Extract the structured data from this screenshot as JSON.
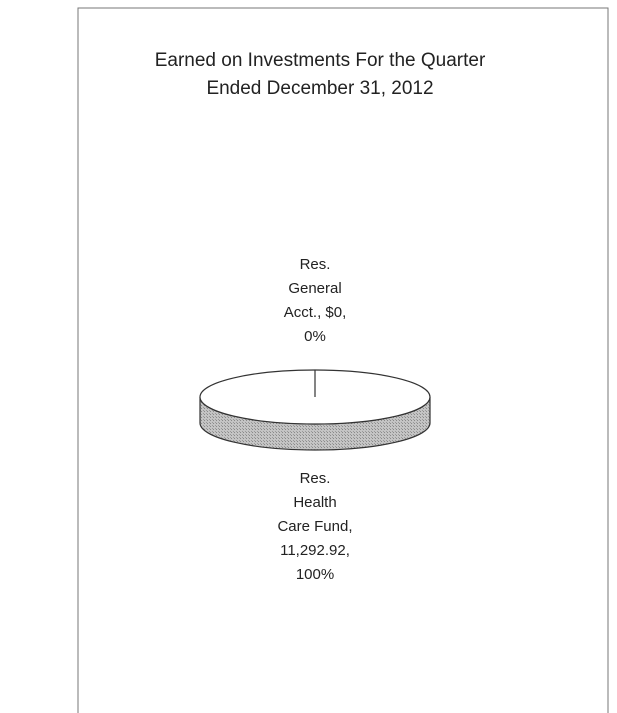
{
  "chart_data": {
    "type": "pie",
    "three_d": true,
    "title": [
      "Earned on Investments For the Quarter",
      "Ended December 31, 2012"
    ],
    "values": [
      0,
      11292.92
    ],
    "data_labels": [
      "Res. General Acct., $0, 0%",
      "Res. Health Care Fund, 11,292.92, 100%"
    ],
    "colors": [
      "#ffffff",
      "#ffffff"
    ],
    "side_color": "#b8b8b8"
  }
}
